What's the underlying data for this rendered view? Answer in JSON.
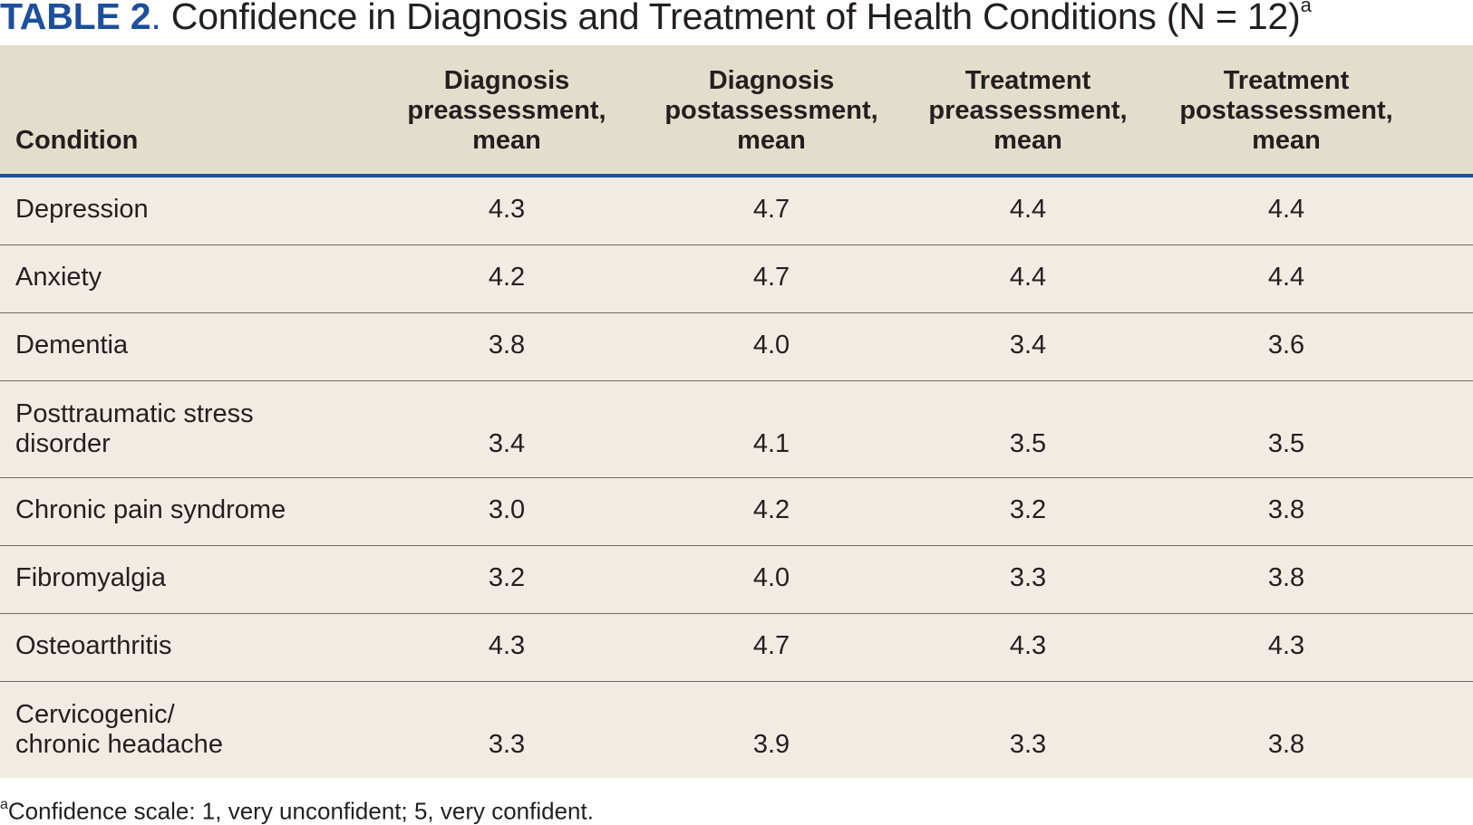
{
  "title": {
    "label": "TABLE 2",
    "separator": ".",
    "text": " Confidence in Diagnosis and Treatment of Health Conditions (N = 12)",
    "superscript": "a"
  },
  "table": {
    "headers": [
      [
        "Condition"
      ],
      [
        "Diagnosis",
        "preassessment,",
        "mean"
      ],
      [
        "Diagnosis",
        "postassessment,",
        "mean"
      ],
      [
        "Treatment",
        "preassessment,",
        "mean"
      ],
      [
        "Treatment",
        "postassessment,",
        "mean"
      ]
    ],
    "rows": [
      {
        "condition": [
          "Depression"
        ],
        "values": [
          "4.3",
          "4.7",
          "4.4",
          "4.4"
        ]
      },
      {
        "condition": [
          "Anxiety"
        ],
        "values": [
          "4.2",
          "4.7",
          "4.4",
          "4.4"
        ]
      },
      {
        "condition": [
          "Dementia"
        ],
        "values": [
          "3.8",
          "4.0",
          "3.4",
          "3.6"
        ]
      },
      {
        "condition": [
          "Posttraumatic stress",
          "disorder"
        ],
        "values": [
          "3.4",
          "4.1",
          "3.5",
          "3.5"
        ]
      },
      {
        "condition": [
          "Chronic pain syndrome"
        ],
        "values": [
          "3.0",
          "4.2",
          "3.2",
          "3.8"
        ]
      },
      {
        "condition": [
          "Fibromyalgia"
        ],
        "values": [
          "3.2",
          "4.0",
          "3.3",
          "3.8"
        ]
      },
      {
        "condition": [
          "Osteoarthritis"
        ],
        "values": [
          "4.3",
          "4.7",
          "4.3",
          "4.3"
        ]
      },
      {
        "condition": [
          "Cervicogenic/",
          "chronic headache"
        ],
        "values": [
          "3.3",
          "3.9",
          "3.3",
          "3.8"
        ]
      }
    ]
  },
  "footnote": {
    "marker": "a",
    "text": "Confidence scale: 1, very unconfident; 5, very confident."
  },
  "colors": {
    "accent": "#1c4f9c",
    "header_bg": "#e3ddcc",
    "body_bg": "#f0ece4",
    "rule": "#6f6b66"
  }
}
